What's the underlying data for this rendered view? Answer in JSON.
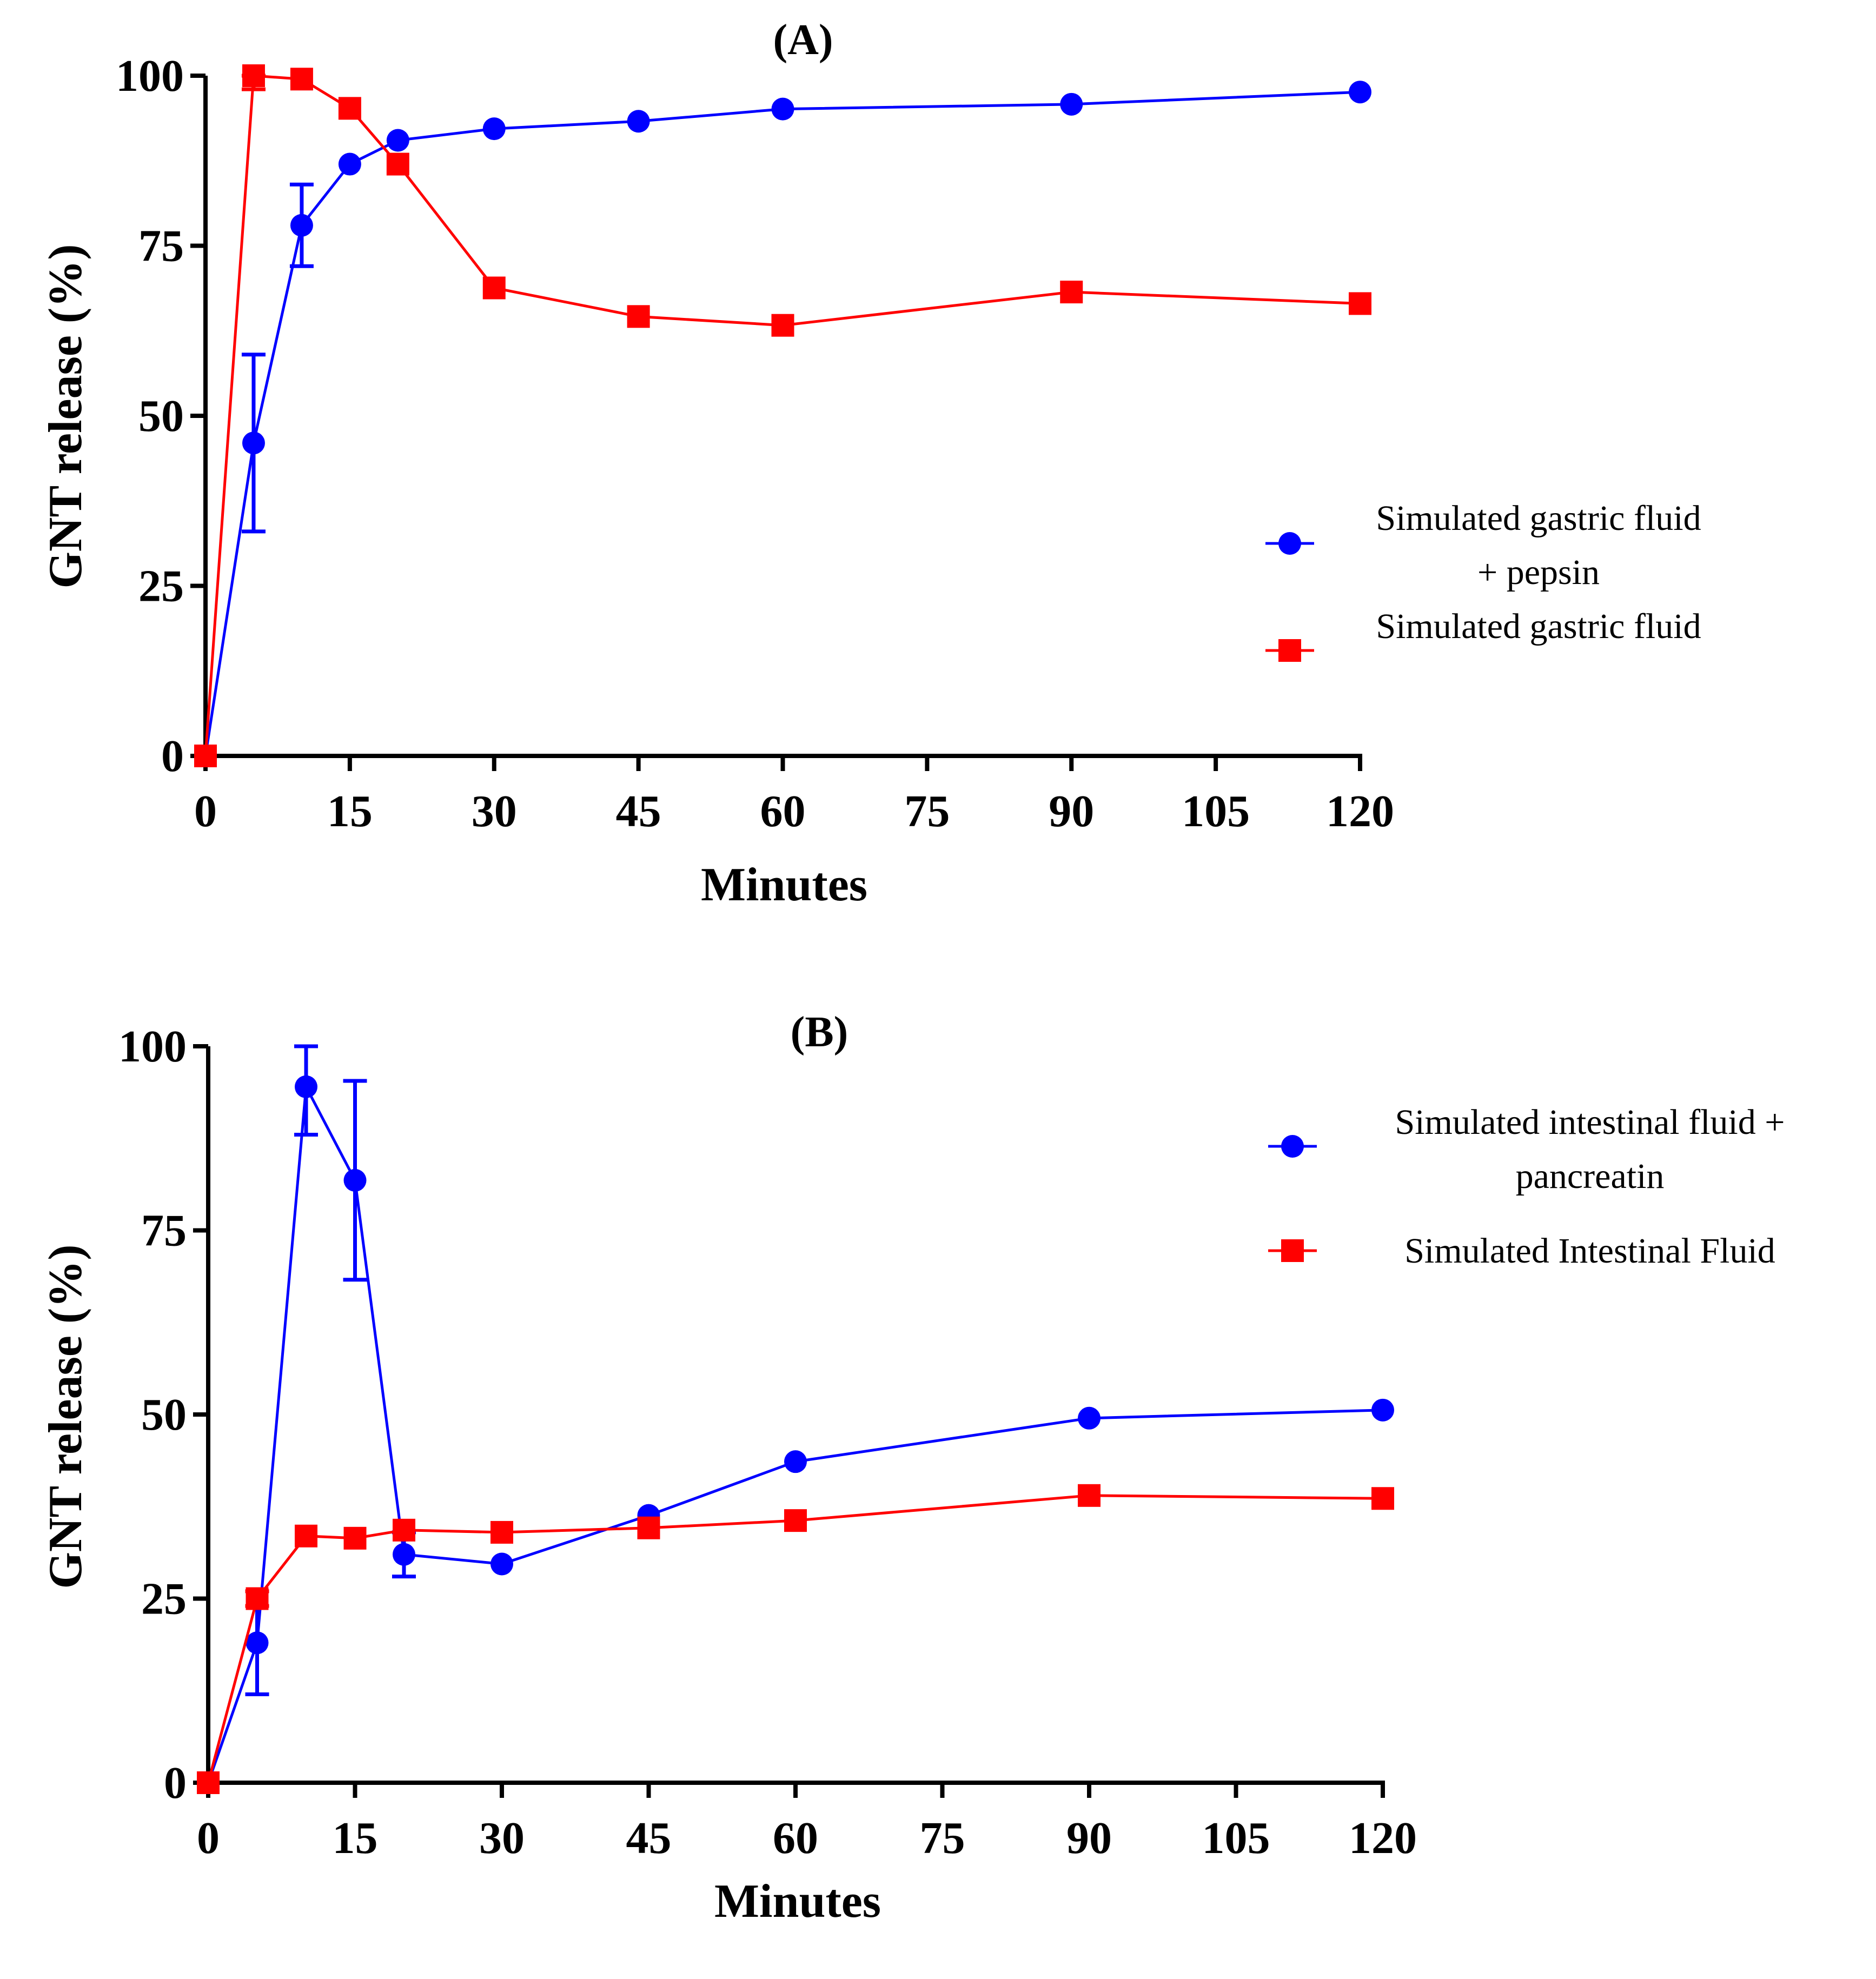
{
  "chart_data": [
    {
      "type": "line",
      "title": "(A)",
      "xlabel": "Minutes",
      "ylabel": "GNT release (%)",
      "xlim": [
        0,
        120
      ],
      "ylim": [
        0,
        100
      ],
      "xticks": [
        "0",
        "15",
        "30",
        "45",
        "60",
        "75",
        "90",
        "105",
        "120"
      ],
      "yticks": [
        "0",
        "25",
        "50",
        "75",
        "100"
      ],
      "legend_position": "right",
      "series": [
        {
          "name": "Simulated gastric fluid + pepsin",
          "legend_lines": [
            "Simulated gastric fluid",
            "+ pepsin"
          ],
          "color": "#0000ff",
          "marker": "circle",
          "x": [
            0,
            5,
            10,
            15,
            20,
            30,
            45,
            60,
            90,
            120
          ],
          "y": [
            0,
            46,
            78,
            87,
            90.5,
            92.2,
            93.3,
            95.1,
            95.8,
            97.6
          ],
          "error": [
            0,
            13,
            6,
            0,
            0,
            0,
            0,
            0,
            0,
            0
          ]
        },
        {
          "name": "Simulated gastric fluid",
          "legend_lines": [
            "Simulated gastric fluid"
          ],
          "color": "#ff0000",
          "marker": "square",
          "x": [
            0,
            5,
            10,
            15,
            20,
            30,
            45,
            60,
            90,
            120
          ],
          "y": [
            0,
            100,
            99.5,
            95.2,
            87,
            68.8,
            64.6,
            63.3,
            68.2,
            66.5
          ],
          "error": [
            0,
            2,
            0,
            0,
            0,
            0,
            0,
            0,
            0,
            0
          ]
        }
      ]
    },
    {
      "type": "line",
      "title": "(B)",
      "xlabel": "Minutes",
      "ylabel": "GNT release (%)",
      "xlim": [
        0,
        120
      ],
      "ylim": [
        0,
        100
      ],
      "xticks": [
        "0",
        "15",
        "30",
        "45",
        "60",
        "75",
        "90",
        "105",
        "120"
      ],
      "yticks": [
        "0",
        "25",
        "50",
        "75",
        "100"
      ],
      "legend_position": "top-right",
      "series": [
        {
          "name": "Simulated intestinal fluid + pancreatin",
          "legend_lines": [
            "Simulated intestinal fluid +",
            "pancreatin"
          ],
          "color": "#0000ff",
          "marker": "circle",
          "x": [
            0,
            5,
            10,
            15,
            20,
            30,
            45,
            60,
            90,
            120
          ],
          "y": [
            0,
            19,
            94.5,
            81.8,
            31,
            29.7,
            36.3,
            43.6,
            49.5,
            50.6
          ],
          "error": [
            0,
            7,
            6.5,
            13.5,
            3,
            0,
            0,
            0,
            0,
            0
          ]
        },
        {
          "name": "Simulated Intestinal Fluid",
          "legend_lines": [
            "Simulated Intestinal Fluid"
          ],
          "color": "#ff0000",
          "marker": "square",
          "x": [
            0,
            5,
            10,
            15,
            20,
            30,
            45,
            60,
            90,
            120
          ],
          "y": [
            0,
            25,
            33.5,
            33.2,
            34.3,
            34,
            34.6,
            35.6,
            39,
            38.6
          ],
          "error": [
            0,
            1,
            0,
            0,
            0,
            0,
            0,
            0,
            0,
            0
          ]
        }
      ]
    }
  ]
}
